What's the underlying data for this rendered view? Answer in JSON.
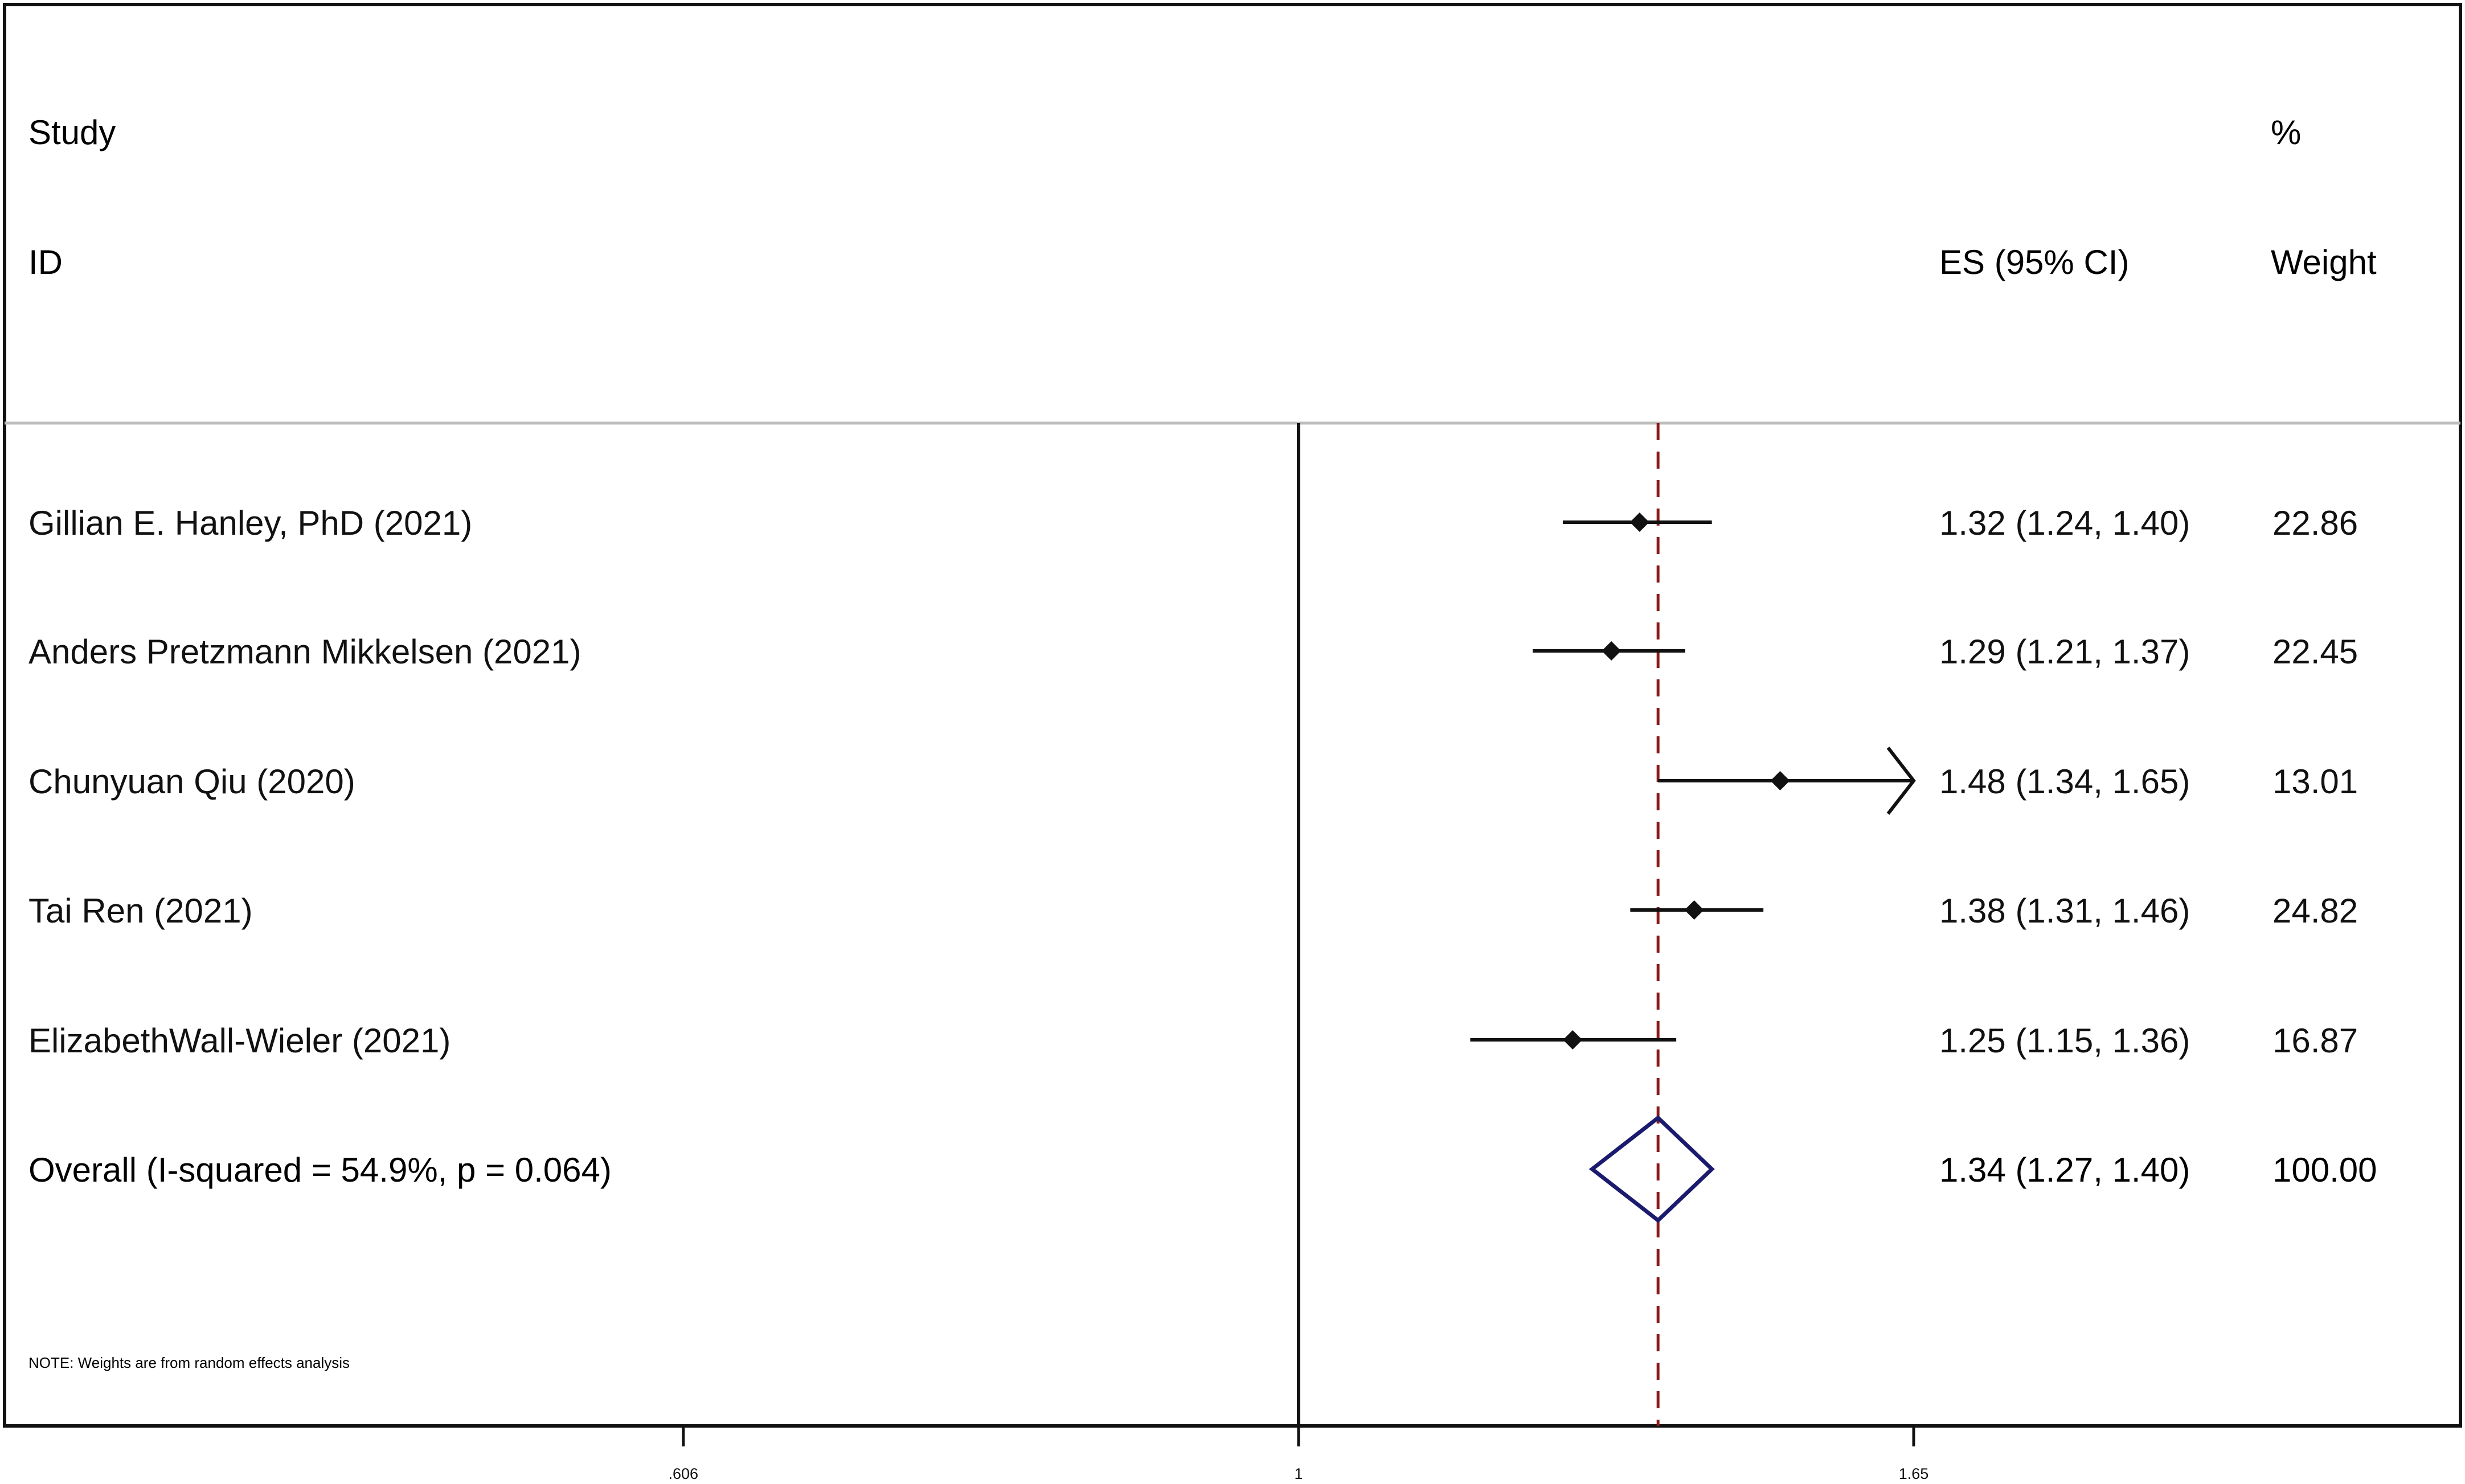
{
  "chart_data": {
    "type": "forest",
    "header": {
      "study_line1": "Study",
      "study_line2": "ID",
      "es_label": "ES (95% CI)",
      "weight_line1": "%",
      "weight_line2": "Weight"
    },
    "studies": [
      {
        "name": "Gillian E. Hanley, PhD (2021)",
        "es": 1.32,
        "lower": 1.24,
        "upper": 1.4,
        "es_text": "1.32 (1.24, 1.40)",
        "weight": 22.86,
        "weight_text": "22.86"
      },
      {
        "name": "Anders Pretzmann Mikkelsen (2021)",
        "es": 1.29,
        "lower": 1.21,
        "upper": 1.37,
        "es_text": "1.29 (1.21, 1.37)",
        "weight": 22.45,
        "weight_text": "22.45"
      },
      {
        "name": "Chunyuan Qiu (2020)",
        "es": 1.48,
        "lower": 1.34,
        "upper": 1.65,
        "es_text": "1.48 (1.34, 1.65)",
        "weight": 13.01,
        "weight_text": "13.01",
        "upper_arrow": true
      },
      {
        "name": "Tai Ren (2021)",
        "es": 1.38,
        "lower": 1.31,
        "upper": 1.46,
        "es_text": "1.38 (1.31, 1.46)",
        "weight": 24.82,
        "weight_text": "24.82"
      },
      {
        "name": "ElizabethWall-Wieler (2021)",
        "es": 1.25,
        "lower": 1.15,
        "upper": 1.36,
        "es_text": "1.25 (1.15, 1.36)",
        "weight": 16.87,
        "weight_text": "16.87"
      }
    ],
    "overall": {
      "label": "Overall  (I-squared = 54.9%, p = 0.064)",
      "es": 1.34,
      "lower": 1.27,
      "upper": 1.4,
      "es_text": "1.34 (1.27, 1.40)",
      "weight_text": "100.00"
    },
    "note": "NOTE: Weights are from random effects analysis",
    "x_axis": {
      "scale": "log",
      "ticks": [
        0.606,
        1,
        1.65
      ],
      "tick_labels": [
        ".606",
        "1",
        "1.65"
      ],
      "range": [
        0.606,
        1.65
      ]
    },
    "null_line": 1,
    "colors": {
      "text": "#111111",
      "lines": "#111111",
      "overall_diamond": "#1a1a6e",
      "overall_line": "#8b1a1a",
      "header_rule": "#bdbdbd"
    }
  }
}
